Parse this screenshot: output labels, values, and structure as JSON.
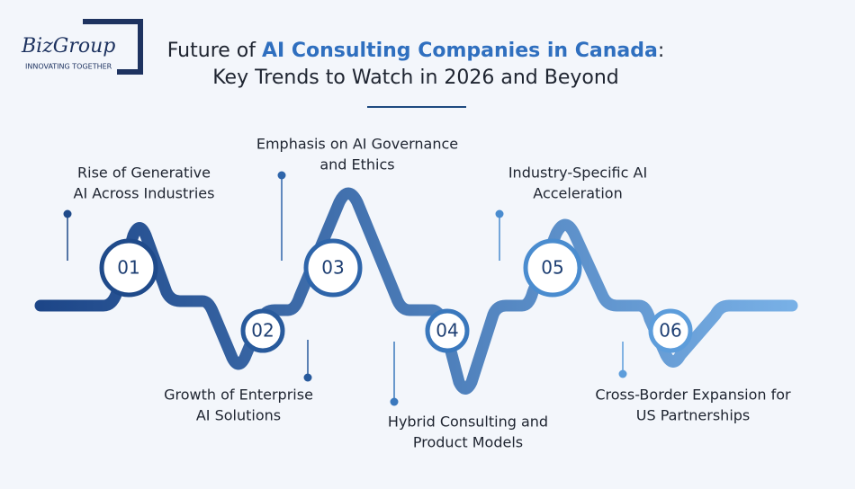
{
  "logo": {
    "name": "BizGroup",
    "tagline": "INNOVATING TOGETHER"
  },
  "header": {
    "title_prefix": "Future of ",
    "title_highlight": "AI Consulting Companies in Canada",
    "title_suffix": ":",
    "subtitle": "Key Trends to Watch in 2026 and Beyond"
  },
  "items": [
    {
      "number": "01",
      "label": [
        "Rise of Generative",
        "AI Across Industries"
      ]
    },
    {
      "number": "02",
      "label": [
        "Growth of Enterprise",
        "AI Solutions"
      ]
    },
    {
      "number": "03",
      "label": [
        "Emphasis on AI Governance",
        "and Ethics"
      ]
    },
    {
      "number": "04",
      "label": [
        "Hybrid Consulting and",
        "Product Models"
      ]
    },
    {
      "number": "05",
      "label": [
        "Industry-Specific AI",
        "Acceleration"
      ]
    },
    {
      "number": "06",
      "label": [
        "Cross-Border Expansion for",
        "US Partnerships"
      ]
    }
  ]
}
